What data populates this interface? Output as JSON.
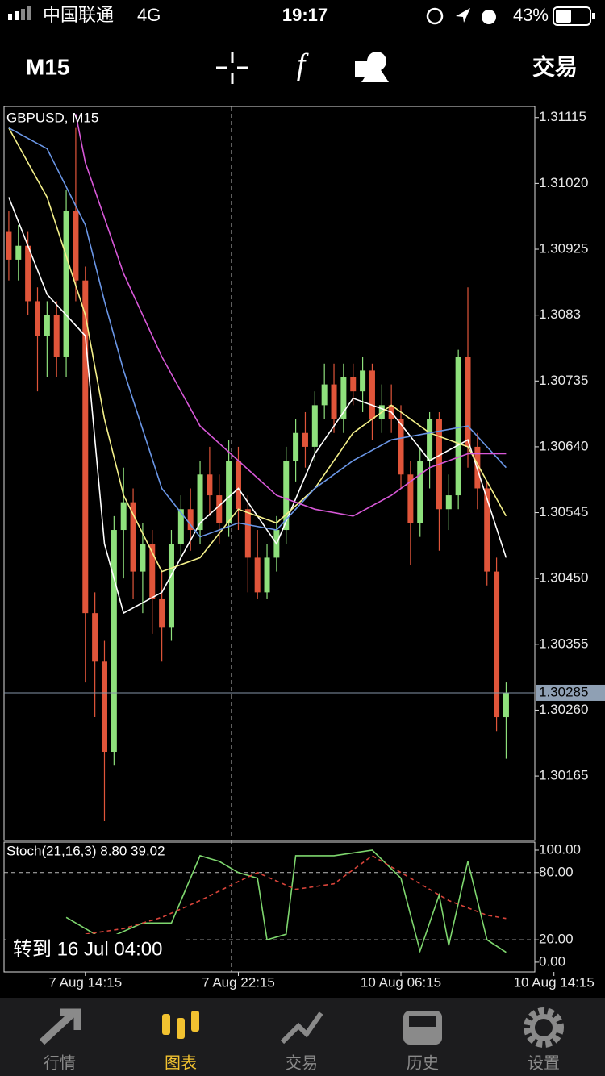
{
  "status_bar": {
    "carrier": "中国联通",
    "network": "4G",
    "time": "19:17",
    "battery": "43%"
  },
  "toolbar": {
    "timeframe": "M15",
    "trade": "交易"
  },
  "goto_button": "转到 16 Jul 04:00",
  "tabs": [
    "行情",
    "图表",
    "交易",
    "历史",
    "设置"
  ],
  "chart_data": [
    {
      "type": "candlestick",
      "title": "GBPUSD, M15",
      "up_color": "#8ee07c",
      "down_color": "#e0553a",
      "x": [
        0,
        1,
        2,
        3,
        4,
        5,
        6,
        7,
        8,
        9,
        10,
        11,
        12,
        13,
        14,
        15,
        16,
        17,
        18,
        19,
        20,
        21,
        22,
        23,
        24,
        25,
        26,
        27,
        28,
        29,
        30,
        31,
        32,
        33,
        34,
        35,
        36,
        37,
        38,
        39,
        40,
        41,
        42,
        43,
        44,
        45,
        46,
        47,
        48,
        49,
        50,
        51,
        52
      ],
      "open": [
        1.3095,
        1.3091,
        1.3093,
        1.3085,
        1.308,
        1.3083,
        1.3077,
        1.3098,
        1.3088,
        1.304,
        1.3033,
        1.302,
        1.3052,
        1.3056,
        1.3046,
        1.305,
        1.3042,
        1.3038,
        1.305,
        1.3055,
        1.3052,
        1.306,
        1.3057,
        1.3053,
        1.3062,
        1.3055,
        1.3048,
        1.3043,
        1.3048,
        1.3052,
        1.3062,
        1.3066,
        1.3064,
        1.307,
        1.3073,
        1.3068,
        1.3074,
        1.3072,
        1.3075,
        1.3068,
        1.307,
        1.3068,
        1.306,
        1.3053,
        1.3062,
        1.3068,
        1.3055,
        1.3057,
        1.3077,
        1.3064,
        1.3058,
        1.3046,
        1.3025
      ],
      "high": [
        1.3098,
        1.3096,
        1.3095,
        1.3087,
        1.3085,
        1.3085,
        1.3101,
        1.311,
        1.309,
        1.3043,
        1.3036,
        1.3054,
        1.3061,
        1.3058,
        1.3053,
        1.3052,
        1.3046,
        1.3052,
        1.3057,
        1.3058,
        1.3062,
        1.3064,
        1.306,
        1.3065,
        1.3064,
        1.3057,
        1.3052,
        1.305,
        1.3054,
        1.3064,
        1.3068,
        1.3069,
        1.3072,
        1.3076,
        1.3076,
        1.3076,
        1.3076,
        1.3077,
        1.3076,
        1.3073,
        1.3073,
        1.307,
        1.3062,
        1.3064,
        1.3069,
        1.3069,
        1.306,
        1.3078,
        1.3087,
        1.3066,
        1.3059,
        1.3048,
        1.303
      ],
      "low": [
        1.3088,
        1.3088,
        1.3083,
        1.3072,
        1.3074,
        1.3074,
        1.3074,
        1.3085,
        1.303,
        1.3025,
        1.301,
        1.3018,
        1.3045,
        1.3042,
        1.304,
        1.3037,
        1.3033,
        1.3036,
        1.3048,
        1.3049,
        1.305,
        1.3054,
        1.305,
        1.3051,
        1.3052,
        1.3043,
        1.3042,
        1.3042,
        1.3046,
        1.305,
        1.3059,
        1.3061,
        1.3062,
        1.3068,
        1.3066,
        1.3066,
        1.307,
        1.3069,
        1.3065,
        1.3066,
        1.3066,
        1.3058,
        1.3047,
        1.3051,
        1.3058,
        1.3049,
        1.3052,
        1.3055,
        1.3061,
        1.3055,
        1.3044,
        1.3023,
        1.3019
      ],
      "close": [
        1.3091,
        1.3093,
        1.3085,
        1.308,
        1.3083,
        1.3077,
        1.3098,
        1.3088,
        1.304,
        1.3033,
        1.302,
        1.3052,
        1.3056,
        1.3046,
        1.305,
        1.3042,
        1.3038,
        1.305,
        1.3055,
        1.3052,
        1.306,
        1.3057,
        1.3053,
        1.3062,
        1.3055,
        1.3048,
        1.3043,
        1.3048,
        1.3052,
        1.3062,
        1.3066,
        1.3064,
        1.307,
        1.3073,
        1.3068,
        1.3074,
        1.3072,
        1.3075,
        1.3068,
        1.307,
        1.3068,
        1.306,
        1.3053,
        1.3062,
        1.3068,
        1.3055,
        1.3057,
        1.3077,
        1.3064,
        1.3058,
        1.3046,
        1.3025,
        1.30285
      ],
      "series": [
        {
          "color": "#ffffff",
          "x": [
            0,
            4,
            8,
            10,
            12,
            16,
            20,
            24,
            28,
            32,
            36,
            40,
            44,
            48,
            52
          ],
          "values": [
            1.31,
            1.3086,
            1.308,
            1.305,
            1.304,
            1.3043,
            1.3053,
            1.3058,
            1.305,
            1.3063,
            1.3071,
            1.3069,
            1.3062,
            1.3065,
            1.3048
          ]
        },
        {
          "color": "#f4f08a",
          "x": [
            0,
            4,
            8,
            10,
            12,
            16,
            20,
            24,
            28,
            32,
            36,
            40,
            44,
            48,
            52
          ],
          "values": [
            1.311,
            1.31,
            1.3083,
            1.3068,
            1.3057,
            1.3046,
            1.3048,
            1.3055,
            1.3053,
            1.3058,
            1.3066,
            1.307,
            1.3066,
            1.3064,
            1.3054
          ]
        },
        {
          "color": "#6a96e6",
          "x": [
            0,
            4,
            8,
            10,
            12,
            16,
            20,
            24,
            28,
            32,
            36,
            40,
            44,
            48,
            52
          ],
          "values": [
            1.311,
            1.3107,
            1.3096,
            1.3085,
            1.3075,
            1.3058,
            1.3051,
            1.3053,
            1.3052,
            1.3058,
            1.3062,
            1.3065,
            1.3066,
            1.3067,
            1.3061
          ]
        },
        {
          "color": "#d858d8",
          "x": [
            7,
            8,
            10,
            12,
            16,
            20,
            24,
            28,
            32,
            36,
            40,
            44,
            48,
            52
          ],
          "values": [
            1.3112,
            1.3105,
            1.3097,
            1.3089,
            1.3077,
            1.3067,
            1.3062,
            1.3057,
            1.3055,
            1.3054,
            1.3057,
            1.3061,
            1.3063,
            1.3063
          ]
        }
      ],
      "last_price": 1.30285,
      "xlim": [
        -0.5,
        55
      ],
      "ylim": [
        1.30072,
        1.31131
      ],
      "yticks": [
        1.31115,
        {
          "value": 1.3102,
          "label": "1.31020"
        },
        1.30925,
        1.3083,
        1.30735,
        {
          "value": 1.3064,
          "label": "1.30640"
        },
        1.30545,
        {
          "value": 1.3045,
          "label": "1.30450"
        },
        1.30355,
        {
          "value": 1.3026,
          "label": "1.30260"
        },
        1.30165
      ],
      "xticks": [
        {
          "value": 8,
          "label": "7 Aug 14:15"
        },
        {
          "value": 24,
          "label": "7 Aug 22:15"
        },
        {
          "value": 41,
          "label": "10 Aug 06:15"
        },
        {
          "value": 57,
          "label": "10 Aug 14:15"
        }
      ]
    },
    {
      "type": "line",
      "title": "Stoch(21,16,3) 8.80 39.02",
      "series": [
        {
          "color": "#7ed66e",
          "x": [
            6,
            10,
            14,
            17,
            18,
            20,
            22,
            24,
            26,
            27,
            29,
            30,
            34,
            38,
            41,
            43,
            45,
            46,
            48,
            50,
            52
          ],
          "values": [
            40,
            20,
            35,
            35,
            55,
            95,
            90,
            80,
            75,
            20,
            25,
            95,
            95,
            100,
            75,
            10,
            60,
            15,
            90,
            20,
            8.8
          ]
        },
        {
          "color": "#d8443a",
          "style": "dashed",
          "x": [
            8,
            12,
            16,
            20,
            24,
            26,
            30,
            34,
            38,
            42,
            46,
            50,
            52
          ],
          "values": [
            25,
            30,
            40,
            55,
            72,
            80,
            65,
            70,
            95,
            75,
            55,
            42,
            39.02
          ]
        }
      ],
      "levels": [
        80,
        20
      ],
      "xlim": [
        -0.5,
        55
      ],
      "ylim": [
        -8.7,
        107.2
      ],
      "yticks": [
        {
          "value": 100,
          "label": "100.00"
        },
        {
          "value": 80,
          "label": "80.00"
        },
        {
          "value": 20,
          "label": "20.00"
        },
        {
          "value": 0,
          "label": "0.00"
        }
      ]
    }
  ]
}
